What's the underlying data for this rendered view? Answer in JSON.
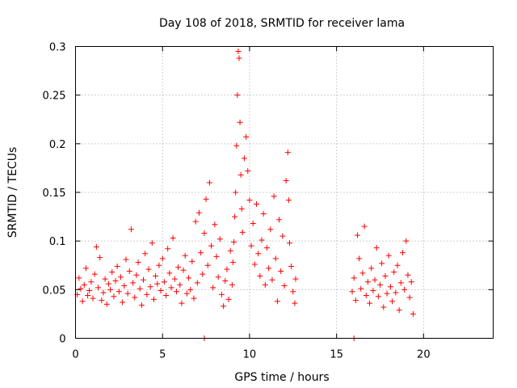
{
  "chart_data": {
    "type": "scatter",
    "title": "Day 108 of 2018, SRMTID for receiver lama",
    "xlabel": "GPS time / hours",
    "ylabel": "SRMTID / TECUs",
    "xlim": [
      0,
      24
    ],
    "ylim": [
      0,
      0.3
    ],
    "x_ticks": [
      0,
      5,
      10,
      15,
      20
    ],
    "x_tick_labels": [
      "0",
      "5",
      "10",
      "15",
      "20"
    ],
    "y_ticks": [
      0,
      0.05,
      0.1,
      0.15,
      0.2,
      0.25,
      0.3
    ],
    "y_tick_labels": [
      "0",
      "0.05",
      "0.1",
      "0.15",
      "0.2",
      "0.25",
      "0.3"
    ],
    "grid": true,
    "marker": "+",
    "color": "#ff0000",
    "series": [
      {
        "name": "SRMTID",
        "points": [
          [
            0.1,
            0.045
          ],
          [
            0.2,
            0.062
          ],
          [
            0.3,
            0.051
          ],
          [
            0.4,
            0.038
          ],
          [
            0.5,
            0.055
          ],
          [
            0.6,
            0.072
          ],
          [
            0.7,
            0.044
          ],
          [
            0.8,
            0.049
          ],
          [
            0.9,
            0.058
          ],
          [
            1.0,
            0.041
          ],
          [
            1.1,
            0.066
          ],
          [
            1.2,
            0.094
          ],
          [
            1.3,
            0.052
          ],
          [
            1.4,
            0.083
          ],
          [
            1.5,
            0.039
          ],
          [
            1.6,
            0.047
          ],
          [
            1.7,
            0.061
          ],
          [
            1.8,
            0.035
          ],
          [
            1.9,
            0.056
          ],
          [
            2.0,
            0.05
          ],
          [
            2.1,
            0.068
          ],
          [
            2.2,
            0.043
          ],
          [
            2.3,
            0.059
          ],
          [
            2.4,
            0.074
          ],
          [
            2.5,
            0.048
          ],
          [
            2.6,
            0.063
          ],
          [
            2.7,
            0.037
          ],
          [
            2.8,
            0.054
          ],
          [
            2.9,
            0.081
          ],
          [
            3.0,
            0.046
          ],
          [
            3.1,
            0.069
          ],
          [
            3.2,
            0.112
          ],
          [
            3.3,
            0.057
          ],
          [
            3.4,
            0.042
          ],
          [
            3.5,
            0.065
          ],
          [
            3.6,
            0.078
          ],
          [
            3.7,
            0.051
          ],
          [
            3.8,
            0.034
          ],
          [
            3.9,
            0.06
          ],
          [
            4.0,
            0.087
          ],
          [
            4.1,
            0.045
          ],
          [
            4.2,
            0.071
          ],
          [
            4.3,
            0.053
          ],
          [
            4.4,
            0.098
          ],
          [
            4.5,
            0.04
          ],
          [
            4.6,
            0.064
          ],
          [
            4.7,
            0.056
          ],
          [
            4.8,
            0.075
          ],
          [
            4.9,
            0.049
          ],
          [
            5.0,
            0.082
          ],
          [
            5.1,
            0.058
          ],
          [
            5.2,
            0.044
          ],
          [
            5.3,
            0.092
          ],
          [
            5.4,
            0.067
          ],
          [
            5.5,
            0.052
          ],
          [
            5.6,
            0.103
          ],
          [
            5.7,
            0.061
          ],
          [
            5.8,
            0.048
          ],
          [
            5.9,
            0.073
          ],
          [
            6.0,
            0.055
          ],
          [
            6.1,
            0.036
          ],
          [
            6.2,
            0.07
          ],
          [
            6.3,
            0.085
          ],
          [
            6.4,
            0.046
          ],
          [
            6.5,
            0.062
          ],
          [
            6.6,
            0.05
          ],
          [
            6.7,
            0.079
          ],
          [
            6.8,
            0.041
          ],
          [
            6.9,
            0.12
          ],
          [
            7.0,
            0.057
          ],
          [
            7.1,
            0.129
          ],
          [
            7.2,
            0.088
          ],
          [
            7.3,
            0.066
          ],
          [
            7.4,
            0.108
          ],
          [
            7.5,
            0.143
          ],
          [
            7.6,
            0.075
          ],
          [
            7.7,
            0.16
          ],
          [
            7.8,
            0.095
          ],
          [
            7.9,
            0.052
          ],
          [
            8.0,
            0.117
          ],
          [
            8.1,
            0.084
          ],
          [
            8.2,
            0.063
          ],
          [
            8.3,
            0.102
          ],
          [
            8.4,
            0.045
          ],
          [
            8.5,
            0.033
          ],
          [
            8.6,
            0.059
          ],
          [
            8.7,
            0.071
          ],
          [
            8.8,
            0.04
          ],
          [
            8.9,
            0.09
          ],
          [
            9.0,
            0.055
          ],
          [
            9.05,
            0.078
          ],
          [
            9.1,
            0.099
          ],
          [
            9.15,
            0.125
          ],
          [
            9.2,
            0.15
          ],
          [
            9.25,
            0.198
          ],
          [
            9.3,
            0.25
          ],
          [
            9.35,
            0.295
          ],
          [
            9.4,
            0.288
          ],
          [
            9.45,
            0.222
          ],
          [
            9.5,
            0.168
          ],
          [
            9.55,
            0.133
          ],
          [
            9.6,
            0.109
          ],
          [
            9.7,
            0.185
          ],
          [
            9.8,
            0.207
          ],
          [
            9.9,
            0.172
          ],
          [
            10.0,
            0.142
          ],
          [
            10.1,
            0.095
          ],
          [
            10.2,
            0.118
          ],
          [
            10.3,
            0.076
          ],
          [
            10.4,
            0.138
          ],
          [
            10.5,
            0.087
          ],
          [
            10.6,
            0.064
          ],
          [
            10.7,
            0.101
          ],
          [
            10.8,
            0.128
          ],
          [
            10.9,
            0.055
          ],
          [
            11.0,
            0.093
          ],
          [
            11.1,
            0.072
          ],
          [
            11.2,
            0.112
          ],
          [
            11.3,
            0.06
          ],
          [
            11.4,
            0.146
          ],
          [
            11.5,
            0.082
          ],
          [
            11.6,
            0.038
          ],
          [
            11.7,
            0.122
          ],
          [
            11.8,
            0.069
          ],
          [
            11.9,
            0.105
          ],
          [
            12.0,
            0.054
          ],
          [
            12.1,
            0.162
          ],
          [
            12.2,
            0.191
          ],
          [
            12.25,
            0.142
          ],
          [
            12.3,
            0.098
          ],
          [
            12.4,
            0.074
          ],
          [
            12.5,
            0.048
          ],
          [
            12.6,
            0.036
          ],
          [
            12.65,
            0.061
          ],
          [
            7.4,
            0.0
          ],
          [
            16.0,
            0.0
          ],
          [
            15.9,
            0.048
          ],
          [
            16.0,
            0.062
          ],
          [
            16.1,
            0.039
          ],
          [
            16.2,
            0.106
          ],
          [
            16.3,
            0.082
          ],
          [
            16.4,
            0.051
          ],
          [
            16.5,
            0.067
          ],
          [
            16.6,
            0.115
          ],
          [
            16.7,
            0.044
          ],
          [
            16.8,
            0.058
          ],
          [
            16.9,
            0.036
          ],
          [
            17.0,
            0.072
          ],
          [
            17.1,
            0.049
          ],
          [
            17.2,
            0.06
          ],
          [
            17.3,
            0.093
          ],
          [
            17.4,
            0.043
          ],
          [
            17.5,
            0.055
          ],
          [
            17.6,
            0.077
          ],
          [
            17.7,
            0.032
          ],
          [
            17.8,
            0.064
          ],
          [
            17.9,
            0.046
          ],
          [
            18.0,
            0.085
          ],
          [
            18.1,
            0.053
          ],
          [
            18.2,
            0.038
          ],
          [
            18.3,
            0.068
          ],
          [
            18.4,
            0.047
          ],
          [
            18.5,
            0.075
          ],
          [
            18.6,
            0.029
          ],
          [
            18.7,
            0.057
          ],
          [
            18.8,
            0.088
          ],
          [
            18.9,
            0.05
          ],
          [
            19.0,
            0.1
          ],
          [
            19.1,
            0.065
          ],
          [
            19.2,
            0.042
          ],
          [
            19.3,
            0.058
          ],
          [
            19.4,
            0.025
          ]
        ]
      }
    ]
  }
}
